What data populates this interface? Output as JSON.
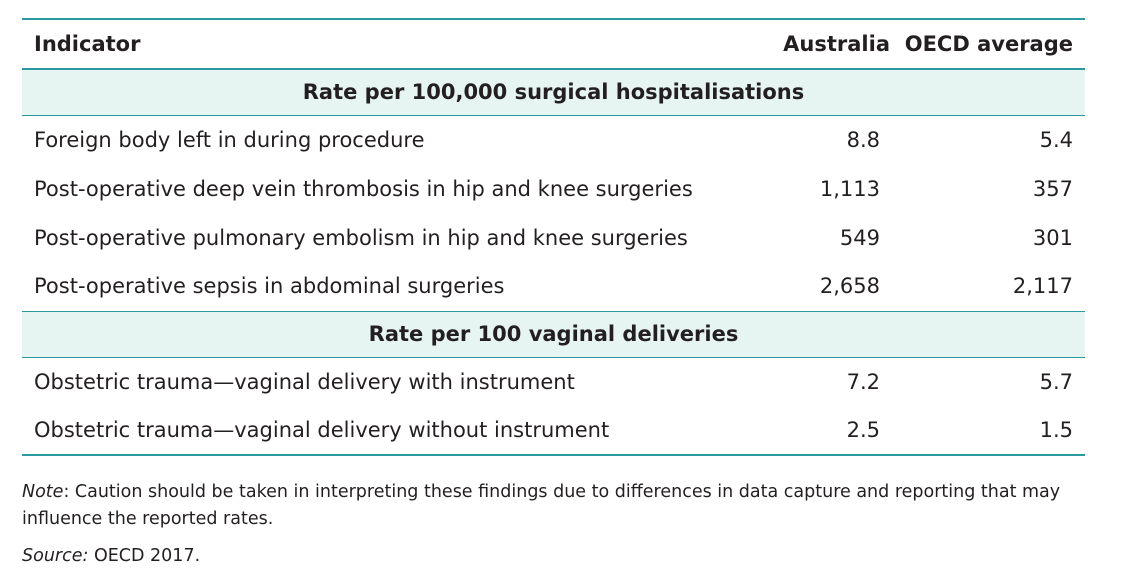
{
  "table": {
    "headers": {
      "indicator": "Indicator",
      "australia": "Australia",
      "oecd": "OECD average"
    },
    "sections": [
      {
        "title": "Rate per 100,000 surgical hospitalisations",
        "rows": [
          {
            "indicator": "Foreign body left in during procedure",
            "australia": "8.8",
            "oecd": "5.4"
          },
          {
            "indicator": "Post-operative deep vein thrombosis in hip and knee surgeries",
            "australia": "1,113",
            "oecd": "357"
          },
          {
            "indicator": "Post-operative pulmonary embolism in hip and knee surgeries",
            "australia": "549",
            "oecd": "301"
          },
          {
            "indicator": "Post-operative sepsis in abdominal surgeries",
            "australia": "2,658",
            "oecd": "2,117"
          }
        ]
      },
      {
        "title": "Rate per 100 vaginal deliveries",
        "rows": [
          {
            "indicator": "Obstetric trauma—vaginal delivery with instrument",
            "australia": "7.2",
            "oecd": "5.7"
          },
          {
            "indicator": "Obstetric trauma—vaginal delivery without instrument",
            "australia": "2.5",
            "oecd": "1.5"
          }
        ]
      }
    ]
  },
  "note": {
    "label": "Note",
    "text": ": Caution should be taken in interpreting these findings due to differences in data capture and reporting that may influence the reported rates."
  },
  "source": {
    "label": "Source:",
    "text": " OECD 2017."
  }
}
